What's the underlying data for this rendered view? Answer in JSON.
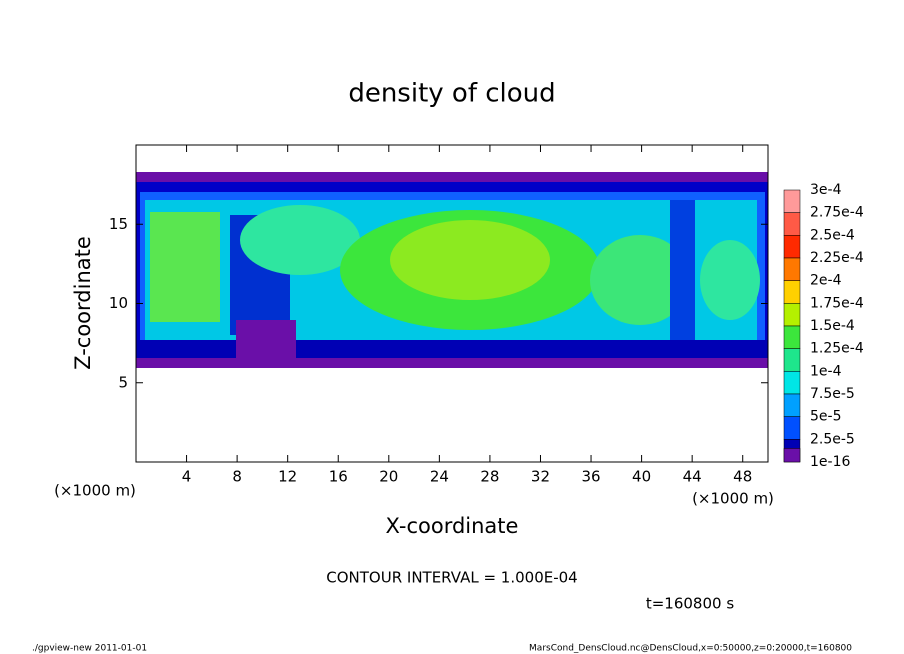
{
  "chart_data": {
    "type": "contour",
    "title": "density of cloud",
    "xlabel": "X-coordinate",
    "ylabel": "Z-coordinate",
    "xunit": "(×1000 m)",
    "yunit": "(×1000 m)",
    "xlim": [
      0,
      50
    ],
    "ylim": [
      0,
      20
    ],
    "xticks": [
      4,
      8,
      12,
      16,
      20,
      24,
      28,
      32,
      36,
      40,
      44,
      48
    ],
    "yticks": [
      5,
      10,
      15
    ],
    "colorbar": {
      "levels": [
        {
          "value": 0.0003,
          "label": "3e-4"
        },
        {
          "value": 0.000275,
          "label": "2.75e-4"
        },
        {
          "value": 0.00025,
          "label": "2.5e-4"
        },
        {
          "value": 0.000225,
          "label": "2.25e-4"
        },
        {
          "value": 0.0002,
          "label": "2e-4"
        },
        {
          "value": 0.000175,
          "label": "1.75e-4"
        },
        {
          "value": 0.00015,
          "label": "1.5e-4"
        },
        {
          "value": 0.000125,
          "label": "1.25e-4"
        },
        {
          "value": 0.0001,
          "label": "1e-4"
        },
        {
          "value": 7.5e-05,
          "label": "7.5e-5"
        },
        {
          "value": 5e-05,
          "label": "5e-5"
        },
        {
          "value": 2.5e-05,
          "label": "2.5e-5"
        },
        {
          "value": 1e-16,
          "label": "1e-16"
        }
      ],
      "colors": [
        "#ff9a9a",
        "#ff5a46",
        "#ff2a00",
        "#ff7800",
        "#ffd000",
        "#b4f000",
        "#3ce63c",
        "#1ee68c",
        "#00e6e6",
        "#00a0ff",
        "#0050ff",
        "#0000b4"
      ]
    },
    "contour_interval": "CONTOUR INTERVAL = 1.000E-04",
    "time": "t=160800 s",
    "footer_left": "./gpview-new   2011-01-01",
    "footer_right": "MarsCond_DensCloud.nc@DensCloud,x=0:50000,z=0:20000,t=160800"
  }
}
